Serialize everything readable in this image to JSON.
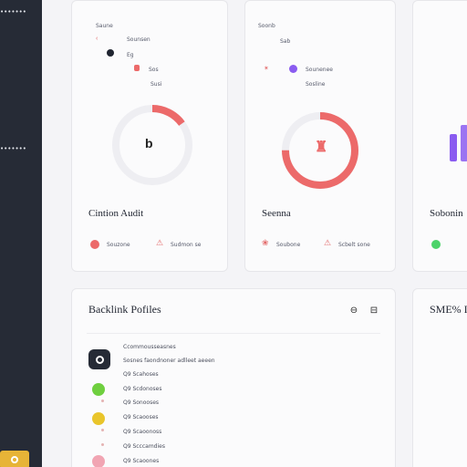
{
  "sidebar": {
    "top_label": "•••••••",
    "mid_label": "•••••••"
  },
  "cards": [
    {
      "title": "Cintion Audit",
      "meta": [
        "Saune",
        "Sounsen",
        "Eg",
        "Sos",
        "Susi"
      ],
      "gauge_value_label": "b",
      "gauge_progress": 0.15,
      "accent": "#ec6a6a",
      "legend": [
        "Souzone",
        "Sudmon se"
      ]
    },
    {
      "title": "Seenna",
      "meta": [
        "Soonb",
        "Sab",
        "Sounenee",
        "Sosline"
      ],
      "gauge_progress": 0.75,
      "accent": "#ec6a6a",
      "legend": [
        "Soubone",
        "Scbelt sone"
      ]
    },
    {
      "title": "Sobonin",
      "accent": "#8a5cf0",
      "legend_color": "#4cd36a"
    }
  ],
  "backlink_panel": {
    "title": "Backlink Pofiles",
    "header_row": "Ccommousseasnes",
    "rows": [
      "Sosnes faondnoner adlleet aeeen",
      "Q9 Scahoses",
      "Q9 Scdonoses",
      "Q9 Sonooses",
      "Q9 Scaooses",
      "Q9 Scaoonoss",
      "Q9 Scccamdies",
      "Q9 Scaoones"
    ],
    "row_colors": [
      "#262b36",
      "#6fcf3f",
      "#f0cfcf",
      "#e9c52b",
      "#f5d0d0",
      "#eeeeee",
      "#f1a5b3",
      "#eeeeee"
    ]
  },
  "side_panel": {
    "title": "SME% I"
  },
  "icons": {
    "toolbar": [
      "refresh-icon",
      "window-icon"
    ]
  }
}
